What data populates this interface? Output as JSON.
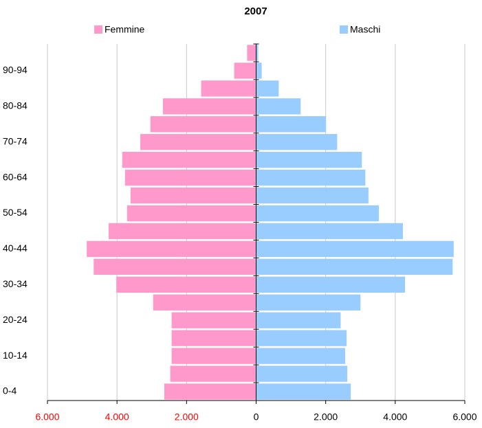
{
  "chart_data": {
    "type": "pyramid",
    "title": "2007",
    "categories": [
      "0-4",
      null,
      "10-14",
      null,
      "20-24",
      null,
      "30-34",
      null,
      "40-44",
      null,
      "50-54",
      null,
      "60-64",
      null,
      "70-74",
      null,
      "80-84",
      null,
      "90-94",
      null
    ],
    "series": [
      {
        "name": "Femmine",
        "color": "#ff99cc",
        "values": [
          -2640,
          -2470,
          -2430,
          -2430,
          -2430,
          -2960,
          -4020,
          -4670,
          -4870,
          -4240,
          -3710,
          -3610,
          -3770,
          -3850,
          -3330,
          -3040,
          -2680,
          -1580,
          -630,
          -260
        ]
      },
      {
        "name": "Maschi",
        "color": "#99ccff",
        "values": [
          2720,
          2620,
          2560,
          2600,
          2430,
          3000,
          4280,
          5650,
          5680,
          4220,
          3530,
          3230,
          3140,
          3040,
          2330,
          2010,
          1280,
          650,
          160,
          60
        ]
      }
    ],
    "xlim": [
      -6000,
      6000
    ],
    "xticks": [
      {
        "value": -6000,
        "label": "6.000"
      },
      {
        "value": -4000,
        "label": "4.000"
      },
      {
        "value": -2000,
        "label": "2.000"
      },
      0,
      {
        "value": 2000,
        "label": "2.000"
      },
      {
        "value": 4000,
        "label": "4.000"
      },
      {
        "value": 6000,
        "label": "6.000"
      }
    ],
    "negative_tick_color": "#ff0000",
    "grid": true,
    "legend": "top"
  }
}
